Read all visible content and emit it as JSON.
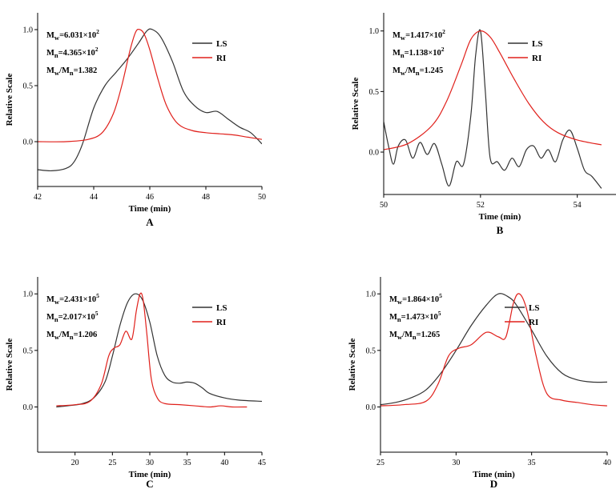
{
  "colors": {
    "LS": "#333333",
    "RI": "#e0201b",
    "axis": "#000000"
  },
  "chart_data": [
    {
      "panel": "A",
      "type": "line",
      "xlabel": "Time (min)",
      "ylabel": "Relative Scale",
      "xlim": [
        42,
        50
      ],
      "ylim": [
        -0.4,
        1.15
      ],
      "xticks": [
        42,
        44,
        46,
        48,
        50
      ],
      "yticks": [
        0.0,
        0.5,
        1.0
      ],
      "xtick_labels": [
        "42",
        "44",
        "46",
        "48",
        "50"
      ],
      "ytick_labels": [
        "0.0",
        "0.5",
        "1.0"
      ],
      "annotations": [
        {
          "sym": "M",
          "sub": "w",
          "text": "=6.031×10",
          "sup": "2"
        },
        {
          "sym": "M",
          "sub": "n",
          "text": "=4.365×10",
          "sup": "2"
        },
        {
          "sym": "M",
          "sub": "w",
          "mid": "/M",
          "sub2": "n",
          "text": "=1.382"
        }
      ],
      "legend": [
        "LS",
        "RI"
      ],
      "series": [
        {
          "name": "LS",
          "x": [
            42,
            42.5,
            43,
            43.3,
            43.6,
            44,
            44.4,
            44.8,
            45.2,
            45.6,
            45.9,
            46.1,
            46.4,
            46.8,
            47.2,
            47.6,
            48,
            48.4,
            48.8,
            49.2,
            49.6,
            50
          ],
          "y": [
            -0.25,
            -0.26,
            -0.24,
            -0.18,
            -0.02,
            0.3,
            0.5,
            0.62,
            0.74,
            0.88,
            0.99,
            1.0,
            0.93,
            0.72,
            0.45,
            0.32,
            0.26,
            0.27,
            0.2,
            0.13,
            0.08,
            -0.02
          ]
        },
        {
          "name": "RI",
          "x": [
            42,
            43,
            43.8,
            44.3,
            44.7,
            45,
            45.3,
            45.5,
            45.65,
            45.8,
            46,
            46.3,
            46.6,
            47,
            47.5,
            48,
            48.5,
            49,
            49.5,
            50
          ],
          "y": [
            0.0,
            0.0,
            0.02,
            0.08,
            0.25,
            0.5,
            0.82,
            0.98,
            1.0,
            0.96,
            0.82,
            0.55,
            0.32,
            0.16,
            0.1,
            0.08,
            0.07,
            0.06,
            0.04,
            0.02
          ]
        }
      ]
    },
    {
      "panel": "B",
      "type": "line",
      "xlabel": "Time (min)",
      "ylabel": "Relative Scale",
      "xlim": [
        50,
        54.8
      ],
      "ylim": [
        -0.35,
        1.15
      ],
      "xticks": [
        50,
        52,
        54
      ],
      "yticks": [
        0.0,
        0.5,
        1.0
      ],
      "xtick_labels": [
        "50",
        "52",
        "54"
      ],
      "ytick_labels": [
        "0.0",
        "0.5",
        "1.0"
      ],
      "annotations": [
        {
          "sym": "M",
          "sub": "w",
          "text": "=1.417×10",
          "sup": "2"
        },
        {
          "sym": "M",
          "sub": "n",
          "text": "=1.138×10",
          "sup": "2"
        },
        {
          "sym": "M",
          "sub": "w",
          "mid": "/M",
          "sub2": "n",
          "text": "=1.245"
        }
      ],
      "legend": [
        "LS",
        "RI"
      ],
      "series": [
        {
          "name": "LS",
          "x": [
            50,
            50.1,
            50.2,
            50.3,
            50.45,
            50.6,
            50.75,
            50.9,
            51.05,
            51.2,
            51.35,
            51.5,
            51.65,
            51.8,
            51.9,
            52.0,
            52.1,
            52.2,
            52.35,
            52.5,
            52.65,
            52.8,
            52.95,
            53.1,
            53.25,
            53.4,
            53.55,
            53.7,
            53.85,
            54.0,
            54.15,
            54.3,
            54.5
          ],
          "y": [
            0.25,
            0.05,
            -0.1,
            0.05,
            0.1,
            -0.05,
            0.08,
            -0.02,
            0.07,
            -0.1,
            -0.28,
            -0.08,
            -0.1,
            0.3,
            0.8,
            1.0,
            0.5,
            -0.05,
            -0.08,
            -0.15,
            -0.05,
            -0.12,
            0.02,
            0.05,
            -0.05,
            0.02,
            -0.08,
            0.1,
            0.18,
            0.03,
            -0.15,
            -0.2,
            -0.3
          ]
        },
        {
          "name": "RI",
          "x": [
            50,
            50.5,
            51,
            51.3,
            51.6,
            51.8,
            52,
            52.2,
            52.4,
            52.7,
            53,
            53.3,
            53.6,
            54,
            54.5
          ],
          "y": [
            0.02,
            0.07,
            0.22,
            0.42,
            0.72,
            0.93,
            1.0,
            0.95,
            0.82,
            0.6,
            0.4,
            0.25,
            0.16,
            0.1,
            0.06
          ]
        }
      ]
    },
    {
      "panel": "C",
      "type": "line",
      "xlabel": "Time (min)",
      "ylabel": "Relative Scale",
      "xlim": [
        15,
        45
      ],
      "ylim": [
        -0.4,
        1.15
      ],
      "xticks": [
        20,
        25,
        30,
        35,
        40,
        45
      ],
      "yticks": [
        0.0,
        0.5,
        1.0
      ],
      "xtick_labels": [
        "20",
        "25",
        "30",
        "35",
        "40",
        "45"
      ],
      "ytick_labels": [
        "0.0",
        "0.5",
        "1.0"
      ],
      "annotations": [
        {
          "sym": "M",
          "sub": "w",
          "text": "=2.431×10",
          "sup": "5"
        },
        {
          "sym": "M",
          "sub": "n",
          "text": "=2.017×10",
          "sup": "5"
        },
        {
          "sym": "M",
          "sub": "w",
          "mid": "/M",
          "sub2": "n",
          "text": "=1.206"
        }
      ],
      "legend": [
        "LS",
        "RI"
      ],
      "series": [
        {
          "name": "LS",
          "x": [
            17.5,
            19,
            21,
            22.5,
            24,
            25,
            26,
            27,
            28,
            29,
            30,
            31,
            32,
            33,
            34,
            35,
            36,
            37,
            38,
            40,
            42,
            45
          ],
          "y": [
            0.0,
            0.01,
            0.03,
            0.08,
            0.22,
            0.45,
            0.72,
            0.92,
            1.0,
            0.95,
            0.75,
            0.45,
            0.28,
            0.22,
            0.21,
            0.22,
            0.21,
            0.17,
            0.12,
            0.08,
            0.06,
            0.05
          ]
        },
        {
          "name": "RI",
          "x": [
            17.5,
            20,
            22,
            23.5,
            24.5,
            25.2,
            26,
            26.8,
            27.6,
            28.2,
            28.7,
            29.1,
            29.6,
            30.2,
            31,
            32,
            34,
            36,
            38,
            39.5,
            41,
            43
          ],
          "y": [
            0.01,
            0.02,
            0.05,
            0.2,
            0.45,
            0.52,
            0.55,
            0.67,
            0.6,
            0.85,
            1.0,
            0.95,
            0.65,
            0.25,
            0.08,
            0.03,
            0.02,
            0.01,
            0.0,
            0.01,
            0.0,
            0.0
          ]
        }
      ]
    },
    {
      "panel": "D",
      "type": "line",
      "xlabel": "Time (min)",
      "ylabel": "Relative Scale",
      "xlim": [
        25,
        40
      ],
      "ylim": [
        -0.4,
        1.15
      ],
      "xticks": [
        25,
        30,
        35,
        40
      ],
      "yticks": [
        0.0,
        0.5,
        1.0
      ],
      "xtick_labels": [
        "25",
        "30",
        "35",
        "40"
      ],
      "ytick_labels": [
        "0.0",
        "0.5",
        "1.0"
      ],
      "annotations": [
        {
          "sym": "M",
          "sub": "w",
          "text": "=1.864×10",
          "sup": "5"
        },
        {
          "sym": "M",
          "sub": "n",
          "text": "=1.473×10",
          "sup": "5"
        },
        {
          "sym": "M",
          "sub": "w",
          "mid": "/M",
          "sub2": "n",
          "text": "=1.265"
        }
      ],
      "legend": [
        "LS",
        "RI"
      ],
      "series": [
        {
          "name": "LS",
          "x": [
            25,
            26,
            27,
            28,
            29,
            30,
            31,
            32,
            32.8,
            33.5,
            34,
            35,
            36,
            37,
            38,
            39,
            40
          ],
          "y": [
            0.02,
            0.04,
            0.08,
            0.15,
            0.3,
            0.5,
            0.72,
            0.9,
            1.0,
            0.97,
            0.9,
            0.68,
            0.45,
            0.3,
            0.24,
            0.22,
            0.22
          ]
        },
        {
          "name": "RI",
          "x": [
            25,
            26.5,
            28,
            28.8,
            29.5,
            30.2,
            31,
            32,
            32.8,
            33.3,
            33.8,
            34.2,
            34.7,
            35.3,
            36,
            37,
            38,
            39,
            40
          ],
          "y": [
            0.01,
            0.02,
            0.05,
            0.2,
            0.45,
            0.52,
            0.55,
            0.66,
            0.62,
            0.62,
            0.92,
            1.0,
            0.85,
            0.45,
            0.12,
            0.06,
            0.04,
            0.02,
            0.01
          ]
        }
      ]
    }
  ]
}
